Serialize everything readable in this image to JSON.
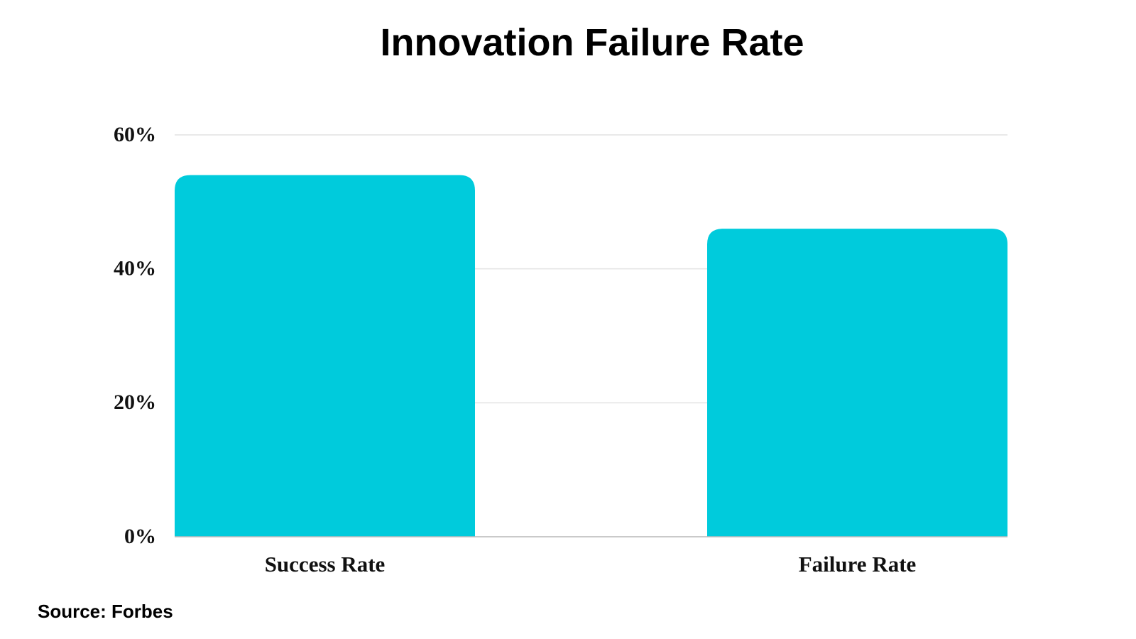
{
  "chart_data": {
    "type": "bar",
    "title": "Innovation Failure Rate",
    "categories": [
      "Success Rate",
      "Failure Rate"
    ],
    "values": [
      54,
      46
    ],
    "color": "#00cbdc",
    "ylim": [
      0,
      60
    ],
    "yticks": [
      {
        "value": 0,
        "label": "0%"
      },
      {
        "value": 20,
        "label": "20%"
      },
      {
        "value": 40,
        "label": "40%"
      },
      {
        "value": 60,
        "label": "60%"
      }
    ],
    "grid": true,
    "source": "Source: Forbes"
  }
}
